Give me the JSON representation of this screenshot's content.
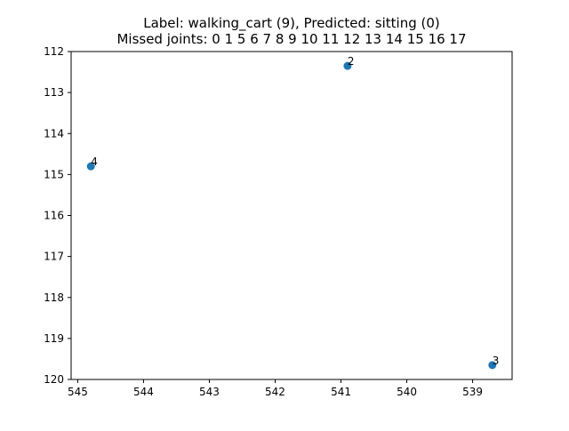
{
  "chart_data": {
    "type": "scatter",
    "title_line1": "Label: walking_cart (9), Predicted: sitting (0)",
    "title_line2": "Missed joints: 0 1 5 6 7 8 9 10 11 12 13 14 15 16 17",
    "xlabel": "",
    "ylabel": "",
    "xlim": [
      545.1,
      538.4
    ],
    "ylim": [
      120,
      112
    ],
    "x_inverted": true,
    "y_inverted": true,
    "grid": false,
    "x_ticks": [
      545,
      544,
      543,
      542,
      541,
      540,
      539
    ],
    "y_ticks": [
      112,
      113,
      114,
      115,
      116,
      117,
      118,
      119,
      120
    ],
    "point_color": "#1f77b4",
    "points": [
      {
        "label": "2",
        "x": 540.9,
        "y": 112.35
      },
      {
        "label": "3",
        "x": 538.7,
        "y": 119.65
      },
      {
        "label": "4",
        "x": 544.8,
        "y": 114.8
      }
    ]
  }
}
